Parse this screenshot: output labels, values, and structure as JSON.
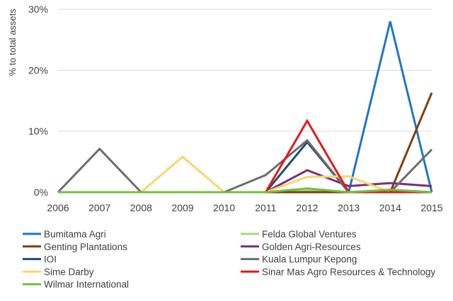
{
  "chart_data": {
    "type": "line",
    "title": "",
    "xlabel": "",
    "ylabel": "% to total assets",
    "x": [
      "2006",
      "2007",
      "2008",
      "2009",
      "2010",
      "2011",
      "2012",
      "2013",
      "2014",
      "2015"
    ],
    "y_ticks": [
      "0%",
      "10%",
      "20%",
      "30%"
    ],
    "y_tick_values": [
      0,
      10,
      20,
      30
    ],
    "ylim": [
      0,
      30
    ],
    "grid": "horizontal",
    "legend_position": "bottom",
    "series": [
      {
        "name": "Bumitama Agri",
        "color": "#1f77c4",
        "values": [
          0,
          0,
          0,
          0,
          0,
          0,
          0,
          0,
          28,
          0
        ]
      },
      {
        "name": "Felda Global Ventures",
        "color": "#a6d785",
        "values": [
          0,
          0,
          0,
          0,
          0,
          0,
          0.2,
          0,
          0.2,
          0
        ]
      },
      {
        "name": "Genting Plantations",
        "color": "#7f3f0f",
        "values": [
          0,
          0,
          0,
          0,
          0,
          0,
          0,
          0,
          0,
          16.3
        ]
      },
      {
        "name": "Golden Agri-Resources",
        "color": "#7b2d7f",
        "values": [
          0,
          0,
          0,
          0,
          0,
          0,
          3.6,
          1,
          1.5,
          1
        ]
      },
      {
        "name": "IOI",
        "color": "#1f4e6f",
        "values": [
          0,
          0,
          0,
          0,
          0,
          0,
          8.2,
          0,
          0,
          0
        ]
      },
      {
        "name": "Kuala Lumpur Kepong",
        "color": "#6d6d6d",
        "values": [
          0,
          7.1,
          0,
          0,
          0,
          2.8,
          8.5,
          0,
          0,
          7
        ]
      },
      {
        "name": "Sime Darby",
        "color": "#f9d56e",
        "values": [
          0,
          0,
          0,
          5.8,
          0,
          0,
          2.5,
          2.6,
          0,
          0
        ]
      },
      {
        "name": "Sinar Mas Agro Resources & Technology",
        "color": "#e31a1c",
        "values": [
          0,
          0,
          0,
          0,
          0,
          0,
          11.7,
          0,
          0,
          0
        ]
      },
      {
        "name": "Wilmar International",
        "color": "#6ec03f",
        "values": [
          0,
          0,
          0,
          0,
          0,
          0,
          0.6,
          0,
          0.4,
          0
        ]
      }
    ]
  }
}
